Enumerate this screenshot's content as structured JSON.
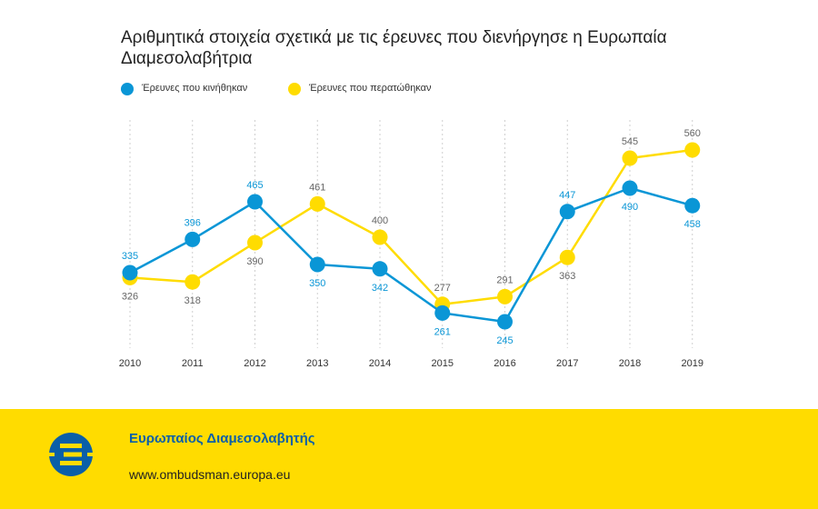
{
  "colors": {
    "opened": "#0A96D6",
    "closed": "#FFDC00",
    "value_label_opened": "#0A96D6",
    "value_label_closed": "#666666",
    "footer_bg": "#FFDC00",
    "footer_title": "#0A5FA8",
    "logo_blue": "#0A5FA8"
  },
  "chart_data": {
    "type": "line",
    "title": "Αριθμητικά στοιχεία σχετικά με τις έρευνες που διενήργησε η Ευρωπαία Διαμεσολαβήτρια",
    "categories": [
      "2010",
      "2011",
      "2012",
      "2013",
      "2014",
      "2015",
      "2016",
      "2017",
      "2018",
      "2019"
    ],
    "series": [
      {
        "name": "Έρευνες που κινήθηκαν",
        "values": [
          335,
          396,
          465,
          350,
          342,
          261,
          245,
          447,
          490,
          458
        ]
      },
      {
        "name": "Έρευνες που περατώθηκαν",
        "values": [
          326,
          318,
          390,
          461,
          400,
          277,
          291,
          363,
          545,
          560
        ]
      }
    ],
    "value_labels_shown": [
      [
        "335",
        "396",
        "465",
        "350",
        "342",
        "261",
        "245",
        "447",
        "490",
        "458"
      ],
      [
        "326",
        "318",
        "390",
        "461",
        "400",
        "277",
        "291",
        "363",
        "545",
        "560"
      ]
    ],
    "label_positions": [
      [
        "above",
        "above",
        "above",
        "below",
        "below",
        "below",
        "below",
        "above",
        "below",
        "below"
      ],
      [
        "below",
        "below",
        "below",
        "above",
        "above",
        "above",
        "above",
        "below",
        "above",
        "above"
      ]
    ],
    "legend_placement": "top-left",
    "grid": "vertical dotted lines",
    "xlabel": "",
    "ylabel": "",
    "ylim": [
      200,
      600
    ]
  },
  "footer": {
    "org_name": "Ευρωπαίος Διαμεσολαβητής",
    "url": "www.ombudsman.europa.eu",
    "logo_icon": "european-ombudsman-logo"
  }
}
